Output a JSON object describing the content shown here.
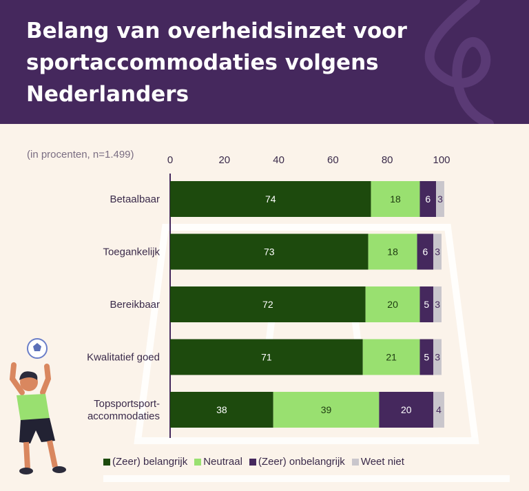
{
  "header": {
    "title": "Belang van overheidsinzet voor sportaccommodaties volgens Nederlanders"
  },
  "colors": {
    "header_bg": "#45285d",
    "zeer_belangrijk": "#1d4a0d",
    "neutraal": "#99e070",
    "zeer_onbelangrijk": "#45285d",
    "weet_niet": "#c9c6cc"
  },
  "chart_data": {
    "type": "bar",
    "orientation": "horizontal",
    "stacked": true,
    "subtitle": "(in procenten, n=1.499)",
    "categories": [
      "Betaalbaar",
      "Toegankelijk",
      "Bereikbaar",
      "Kwalitatief goed",
      [
        "Topsportsport-",
        "accommodaties"
      ]
    ],
    "xlim": [
      0,
      100
    ],
    "xticks": [
      "0",
      "20",
      "40",
      "60",
      "80",
      "100"
    ],
    "legend_position": "bottom",
    "series": [
      {
        "name": "(Zeer) belangrijk",
        "color": "#1d4a0d",
        "label_color": "#ffffff",
        "values": [
          74,
          73,
          72,
          71,
          38
        ]
      },
      {
        "name": "Neutraal",
        "color": "#99e070",
        "label_color": "#1d3a10",
        "values": [
          18,
          18,
          20,
          21,
          39
        ]
      },
      {
        "name": "(Zeer) onbelangrijk",
        "color": "#45285d",
        "label_color": "#ffffff",
        "values": [
          6,
          6,
          5,
          5,
          20
        ]
      },
      {
        "name": "Weet niet",
        "color": "#c9c6cc",
        "label_color": "#45285d",
        "values": [
          3,
          3,
          3,
          3,
          4
        ]
      }
    ]
  }
}
